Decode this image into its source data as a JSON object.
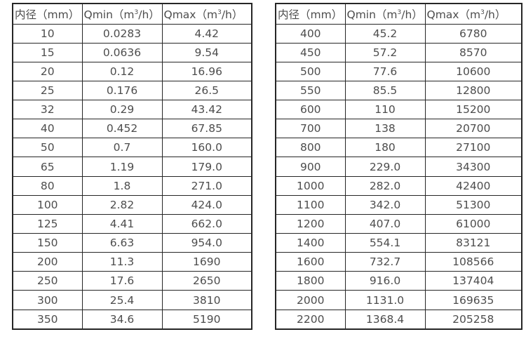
{
  "page": {
    "background": "#ffffff",
    "text_color": "#4d4d4d",
    "border_color": "#262626"
  },
  "tables": [
    {
      "name": "flow-table-left",
      "headers": [
        {
          "pre": "内径（mm）",
          "sup": "",
          "post": ""
        },
        {
          "pre": "Qmin（m",
          "sup": "3",
          "post": "/h）"
        },
        {
          "pre": "Qmax（m",
          "sup": "3",
          "post": "/h）"
        }
      ],
      "rows": [
        [
          "10",
          "0.0283",
          "4.42"
        ],
        [
          "15",
          "0.0636",
          "9.54"
        ],
        [
          "20",
          "0.12",
          "16.96"
        ],
        [
          "25",
          "0.176",
          "26.5"
        ],
        [
          "32",
          "0.29",
          "43.42"
        ],
        [
          "40",
          "0.452",
          "67.85"
        ],
        [
          "50",
          "0.7",
          "160.0"
        ],
        [
          "65",
          "1.19",
          "179.0"
        ],
        [
          "80",
          "1.8",
          "271.0"
        ],
        [
          "100",
          "2.82",
          "424.0"
        ],
        [
          "125",
          "4.41",
          "662.0"
        ],
        [
          "150",
          "6.63",
          "954.0"
        ],
        [
          "200",
          "11.3",
          "1690"
        ],
        [
          "250",
          "17.6",
          "2650"
        ],
        [
          "300",
          "25.4",
          "3810"
        ],
        [
          "350",
          "34.6",
          "5190"
        ]
      ]
    },
    {
      "name": "flow-table-right",
      "headers": [
        {
          "pre": "内径（mm）",
          "sup": "",
          "post": ""
        },
        {
          "pre": "Qmin（m",
          "sup": "3",
          "post": "/h）"
        },
        {
          "pre": "Qmax（m",
          "sup": "3",
          "post": "/h）"
        }
      ],
      "rows": [
        [
          "400",
          "45.2",
          "6780"
        ],
        [
          "450",
          "57.2",
          "8570"
        ],
        [
          "500",
          "77.6",
          "10600"
        ],
        [
          "550",
          "85.5",
          "12800"
        ],
        [
          "600",
          "110",
          "15200"
        ],
        [
          "700",
          "138",
          "20700"
        ],
        [
          "800",
          "180",
          "27100"
        ],
        [
          "900",
          "229.0",
          "34300"
        ],
        [
          "1000",
          "282.0",
          "42400"
        ],
        [
          "1100",
          "342.0",
          "51300"
        ],
        [
          "1200",
          "407.0",
          "61000"
        ],
        [
          "1400",
          "554.1",
          "83121"
        ],
        [
          "1600",
          "732.7",
          "108566"
        ],
        [
          "1800",
          "916.0",
          "137404"
        ],
        [
          "2000",
          "1131.0",
          "169635"
        ],
        [
          "2200",
          "1368.4",
          "205258"
        ]
      ]
    }
  ]
}
